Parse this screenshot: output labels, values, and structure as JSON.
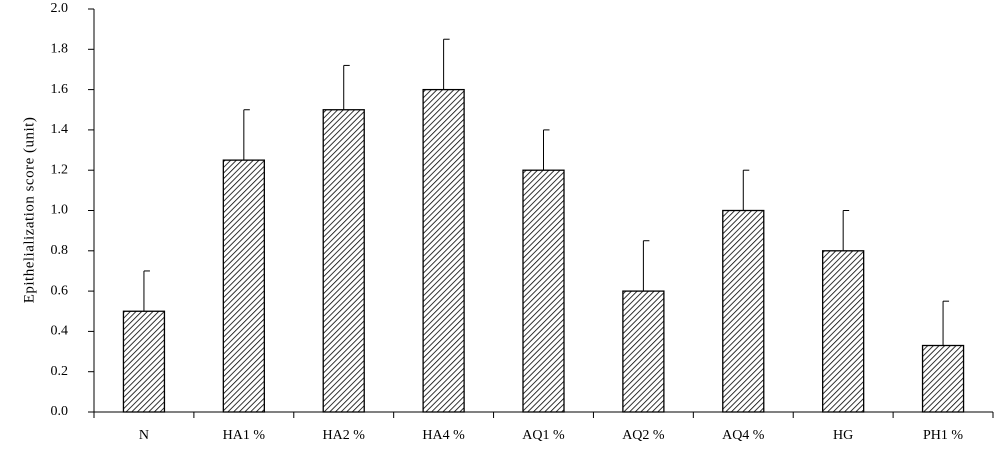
{
  "chart_data": {
    "type": "bar",
    "y_label": "Epithelialization score (unit)",
    "categories": [
      "N",
      "HA1 %",
      "HA2 %",
      "HA4 %",
      "AQ1 %",
      "AQ2 %",
      "AQ4 %",
      "HG",
      "PH1 %"
    ],
    "values": [
      0.5,
      1.25,
      1.5,
      1.6,
      1.2,
      0.6,
      1.0,
      0.8,
      0.33
    ],
    "errors": [
      0.2,
      0.25,
      0.22,
      0.25,
      0.2,
      0.25,
      0.2,
      0.2,
      0.22
    ],
    "color": "#000000",
    "ylim": [
      0,
      2
    ],
    "yticks": [
      {
        "value": 0,
        "label": "0.0"
      },
      0.2,
      0.4,
      0.6,
      0.8,
      {
        "value": 1,
        "label": "1.0"
      },
      1.2,
      1.4,
      1.6,
      1.8,
      {
        "value": 2,
        "label": "2.0"
      }
    ],
    "grid": false
  }
}
